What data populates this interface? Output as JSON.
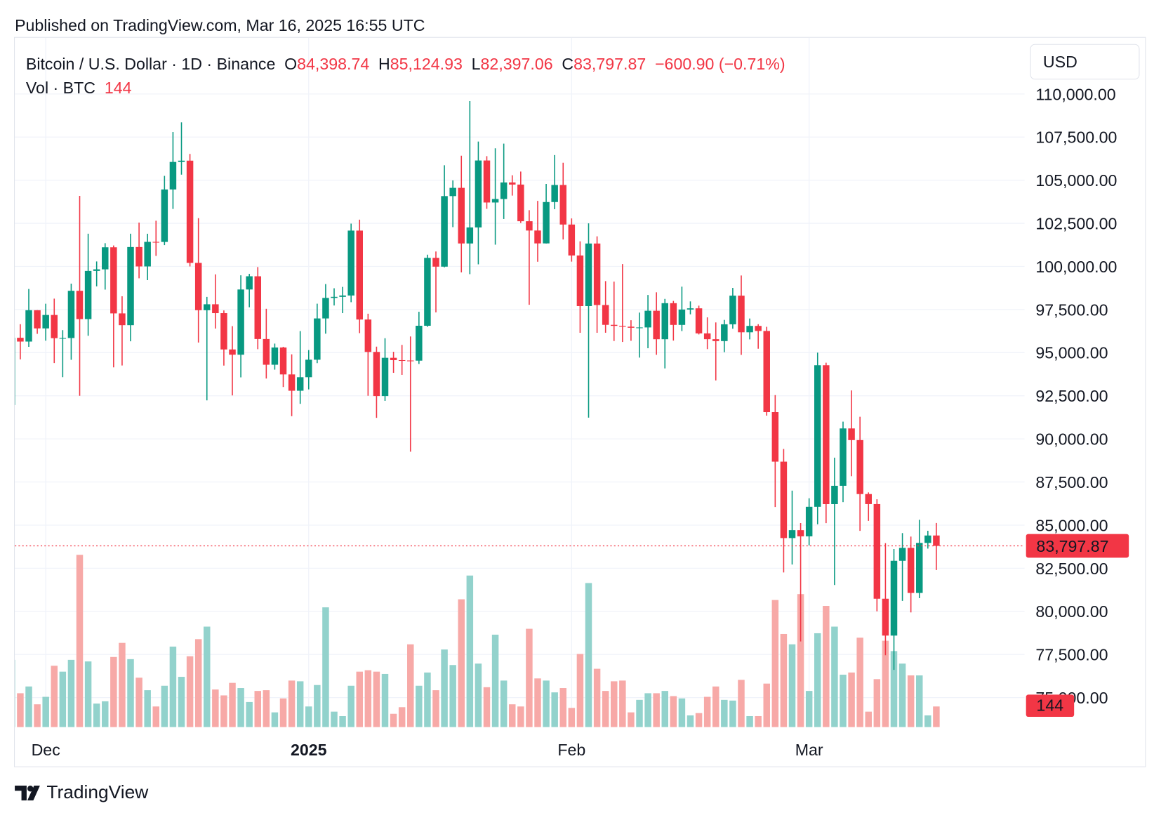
{
  "chart_data": {
    "type": "candlestick",
    "published": "Published on TradingView.com, Mar 16, 2025 16:55 UTC",
    "header": {
      "symbol": "Bitcoin / U.S. Dollar · 1D · Binance",
      "open_prefix": "O",
      "open": "84,398.74",
      "high_prefix": "H",
      "high": "85,124.93",
      "low_prefix": "L",
      "low": "82,397.06",
      "close_prefix": "C",
      "close": "83,797.87",
      "change": "−600.90 (−0.71%)",
      "volume_title": "Vol · BTC"
    },
    "currency": "USD",
    "brand": "TradingView",
    "up_color": "#089981",
    "down_color": "#f23645",
    "volume_up_color": "#92d2cc",
    "volume_down_color": "#f7a9a7",
    "grid": true,
    "xlim": [
      0.35,
      119.4
    ],
    "xticks": [
      {
        "value": 4,
        "label": "Dec"
      },
      {
        "value": 35,
        "label": "2025"
      },
      {
        "value": 66,
        "label": "Feb"
      },
      {
        "value": 94,
        "label": "Mar"
      }
    ],
    "ylim": [
      73284,
      112960
    ],
    "yticks": [
      {
        "value": 75000,
        "label": "75,000.00"
      },
      {
        "value": 77500,
        "label": "77,500.00"
      },
      {
        "value": 80000,
        "label": "80,000.00"
      },
      {
        "value": 82500,
        "label": "82,500.00"
      },
      {
        "value": 85000,
        "label": "85,000.00"
      },
      {
        "value": 87500,
        "label": "87,500.00"
      },
      {
        "value": 90000,
        "label": "90,000.00"
      },
      {
        "value": 92500,
        "label": "92,500.00"
      },
      {
        "value": 95000,
        "label": "95,000.00"
      },
      {
        "value": 97500,
        "label": "97,500.00"
      },
      {
        "value": 100000,
        "label": "100,000.00"
      },
      {
        "value": 102500,
        "label": "102,500.00"
      },
      {
        "value": 105000,
        "label": "105,000.00"
      },
      {
        "value": 107500,
        "label": "107,500.00"
      },
      {
        "value": 110000,
        "label": "110,000.00"
      }
    ],
    "open": [
      91965,
      95863,
      95643,
      97460,
      96407,
      97185,
      95840,
      95849,
      98587,
      96946,
      99740,
      99831,
      101109,
      97276,
      96593,
      101125,
      100000,
      101424,
      101420,
      104463,
      106058,
      106133,
      100204,
      97461,
      97805,
      97291,
      95186,
      94881,
      98663,
      99429,
      95791,
      94299,
      95300,
      93738,
      92792,
      93576,
      94591,
      96984,
      98174,
      98236,
      98314,
      102078,
      96922,
      95043,
      92484,
      94701,
      94566,
      94545,
      94536,
      96560,
      100497,
      99987,
      104077,
      104556,
      101331,
      102260,
      106143,
      103706,
      103910,
      104870,
      104746,
      102620,
      102082,
      101335,
      103733,
      104722,
      102429,
      100635,
      97700,
      101328,
      97763,
      96612,
      96554,
      96506,
      96444,
      96462,
      97430,
      95778,
      97869,
      96609,
      97500,
      97570,
      96118,
      95780,
      95671,
      96644,
      98305,
      96181,
      96551,
      96258,
      91552,
      88680,
      84250,
      84708,
      84350,
      86064,
      94270,
      86220,
      87281,
      90606,
      89931,
      86801,
      86222,
      80734,
      78595,
      82932,
      83681,
      81067,
      83969,
      84398.74
    ],
    "high": [
      97208,
      96650,
      98693,
      97463,
      97836,
      98130,
      96305,
      99000,
      104088,
      101898,
      100288,
      101350,
      101215,
      98270,
      101895,
      102540,
      101895,
      102650,
      105250,
      107793,
      108353,
      106524,
      102800,
      98233,
      99540,
      97448,
      96538,
      99487,
      99569,
      99963,
      97544,
      95525,
      95340,
      94903,
      96250,
      95151,
      97839,
      98976,
      98734,
      98813,
      102482,
      102712,
      97258,
      95349,
      95836,
      95050,
      95450,
      95940,
      97371,
      100681,
      100866,
      105865,
      104988,
      106422,
      109588,
      107240,
      106394,
      106850,
      107120,
      105286,
      105500,
      103260,
      103800,
      104782,
      106457,
      106012,
      102783,
      101456,
      102500,
      101745,
      99149,
      99120,
      100137,
      96880,
      97323,
      98345,
      98500,
      98119,
      98000,
      98826,
      97972,
      97725,
      97046,
      96753,
      96899,
      98756,
      99475,
      96980,
      96650,
      96500,
      92540,
      89414,
      87000,
      85120,
      86558,
      95000,
      94416,
      88911,
      91000,
      92810,
      91283,
      86897,
      86500,
      83955,
      83617,
      84539,
      84336,
      85309,
      84672,
      85124.93
    ],
    "low": [
      91792,
      94612,
      95337,
      96092,
      95693,
      94395,
      93578,
      94587,
      92500,
      95981,
      98844,
      98657,
      94150,
      94256,
      95658,
      99311,
      99205,
      100609,
      101237,
      103333,
      105321,
      100000,
      95587,
      92232,
      96398,
      94250,
      92520,
      93569,
      97632,
      95199,
      93500,
      94014,
      93009,
      91317,
      92033,
      92870,
      94392,
      96100,
      97735,
      97291,
      97926,
      96132,
      92500,
      91220,
      92206,
      93831,
      93712,
      89256,
      94346,
      96500,
      97335,
      99950,
      102277,
      99651,
      99550,
      100119,
      103339,
      101262,
      102750,
      104106,
      102520,
      97777,
      100272,
      101328,
      103319,
      101560,
      100279,
      96150,
      91231,
      96150,
      96155,
      95676,
      95620,
      95688,
      94713,
      95256,
      94876,
      94088,
      95700,
      96252,
      97223,
      96055,
      95205,
      93388,
      95029,
      96389,
      94871,
      95770,
      95227,
      91349,
      86050,
      82256,
      82716,
      78258,
      83824,
      85050,
      85117,
      81529,
      86334,
      87836,
      84667,
      85248,
      80000,
      77459,
      76606,
      80607,
      79939,
      80766,
      83639,
      82397.06
    ],
    "close": [
      95863,
      95643,
      97460,
      96407,
      97185,
      95840,
      95849,
      98587,
      96946,
      99740,
      99831,
      101109,
      97276,
      96593,
      101125,
      100000,
      101424,
      101420,
      104463,
      106058,
      106133,
      100204,
      97461,
      97805,
      97291,
      95186,
      94881,
      98663,
      99429,
      95791,
      94299,
      95300,
      93738,
      92792,
      93576,
      94591,
      96984,
      98174,
      98236,
      98314,
      102078,
      96922,
      95043,
      92484,
      94701,
      94566,
      94545,
      94536,
      96560,
      100497,
      99987,
      104077,
      104556,
      101331,
      102260,
      106143,
      103706,
      103910,
      104870,
      104746,
      102620,
      102082,
      101335,
      103733,
      104722,
      102429,
      100635,
      97700,
      101328,
      97763,
      96612,
      96554,
      96506,
      96444,
      96462,
      97430,
      95778,
      97869,
      96609,
      97500,
      97570,
      96118,
      95780,
      95671,
      96644,
      98305,
      96181,
      96551,
      96258,
      91552,
      88680,
      84250,
      84708,
      84350,
      86064,
      94270,
      86220,
      87281,
      90606,
      89931,
      86801,
      86222,
      80734,
      78595,
      82932,
      83681,
      81067,
      83969,
      84398,
      83797.87
    ],
    "volume": [
      468,
      236,
      283,
      159,
      211,
      427,
      386,
      468,
      1198,
      457,
      164,
      180,
      488,
      586,
      473,
      344,
      257,
      144,
      288,
      560,
      350,
      493,
      612,
      699,
      262,
      221,
      308,
      272,
      175,
      252,
      257,
      103,
      200,
      324,
      319,
      144,
      293,
      833,
      108,
      77,
      288,
      386,
      396,
      386,
      370,
      93,
      139,
      576,
      288,
      380,
      257,
      540,
      432,
      889,
      1054,
      442,
      278,
      643,
      324,
      159,
      144,
      684,
      339,
      324,
      242,
      272,
      134,
      509,
      1002,
      406,
      252,
      319,
      324,
      103,
      190,
      236,
      236,
      252,
      216,
      200,
      82,
      98,
      211,
      283,
      190,
      185,
      329,
      77,
      77,
      303,
      884,
      648,
      576,
      925,
      252,
      653,
      843,
      699,
      365,
      380,
      622,
      108,
      334,
      601,
      529,
      442,
      360,
      360,
      82,
      144
    ]
  }
}
